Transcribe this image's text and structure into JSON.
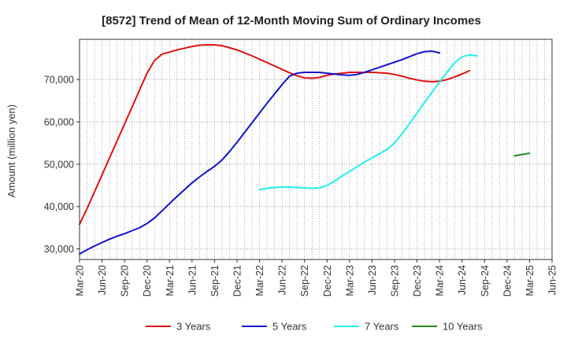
{
  "chart_data": {
    "type": "line",
    "title": "[8572]  Trend of Mean of 12-Month Moving Sum of Ordinary Incomes",
    "xlabel": "",
    "ylabel": "Amount (million yen)",
    "x_ticks": [
      "Mar-20",
      "Jun-20",
      "Sep-20",
      "Dec-20",
      "Mar-21",
      "Jun-21",
      "Sep-21",
      "Dec-21",
      "Mar-22",
      "Jun-22",
      "Sep-22",
      "Dec-22",
      "Mar-23",
      "Jun-23",
      "Sep-23",
      "Dec-23",
      "Mar-24",
      "Jun-24",
      "Sep-24",
      "Dec-24",
      "Mar-25",
      "Jun-25"
    ],
    "y_ticks": [
      30000,
      40000,
      50000,
      60000,
      70000
    ],
    "y_tick_labels": [
      "30,000",
      "40,000",
      "50,000",
      "60,000",
      "70,000"
    ],
    "ylim": [
      27500,
      79500
    ],
    "grid": true,
    "legend_position": "bottom",
    "series": [
      {
        "name": "3 Years",
        "color": "#dd1111",
        "start": "Mar-20",
        "values": [
          35800,
          39500,
          43500,
          47500,
          51500,
          55500,
          59500,
          63500,
          67500,
          71500,
          74500,
          76000,
          76500,
          77000,
          77400,
          77800,
          78100,
          78200,
          78200,
          78000,
          77500,
          77000,
          76300,
          75600,
          74800,
          74000,
          73200,
          72400,
          71600,
          70900,
          70400,
          70300,
          70500,
          71000,
          71300,
          71500,
          71700,
          71700,
          71700,
          71700,
          71600,
          71500,
          71200,
          70800,
          70300,
          69900,
          69600,
          69500,
          69600,
          70000,
          70600,
          71300,
          72100
        ]
      },
      {
        "name": "5 Years",
        "color": "#1111cc",
        "start": "Mar-20",
        "values": [
          28800,
          29800,
          30700,
          31500,
          32300,
          33000,
          33600,
          34300,
          35000,
          36000,
          37300,
          39000,
          40700,
          42400,
          44000,
          45600,
          47000,
          48300,
          49500,
          51000,
          53000,
          55200,
          57500,
          59800,
          62100,
          64400,
          66600,
          68800,
          70800,
          71500,
          71700,
          71700,
          71700,
          71500,
          71300,
          71100,
          71000,
          71200,
          71700,
          72300,
          72900,
          73500,
          74100,
          74700,
          75400,
          76100,
          76600,
          76700,
          76300
        ]
      },
      {
        "name": "7 Years",
        "color": "#22eeee",
        "start": "Mar-22",
        "values": [
          44000,
          44300,
          44500,
          44600,
          44600,
          44500,
          44400,
          44300,
          44400,
          45000,
          46000,
          47200,
          48300,
          49400,
          50500,
          51500,
          52500,
          53500,
          55000,
          57200,
          59600,
          62100,
          64600,
          67000,
          69400,
          71700,
          73900,
          75400,
          75800,
          75600
        ]
      },
      {
        "name": "10 Years",
        "color": "#228822",
        "start": "Jan-25",
        "values": [
          52000,
          52300,
          52600
        ]
      }
    ]
  }
}
